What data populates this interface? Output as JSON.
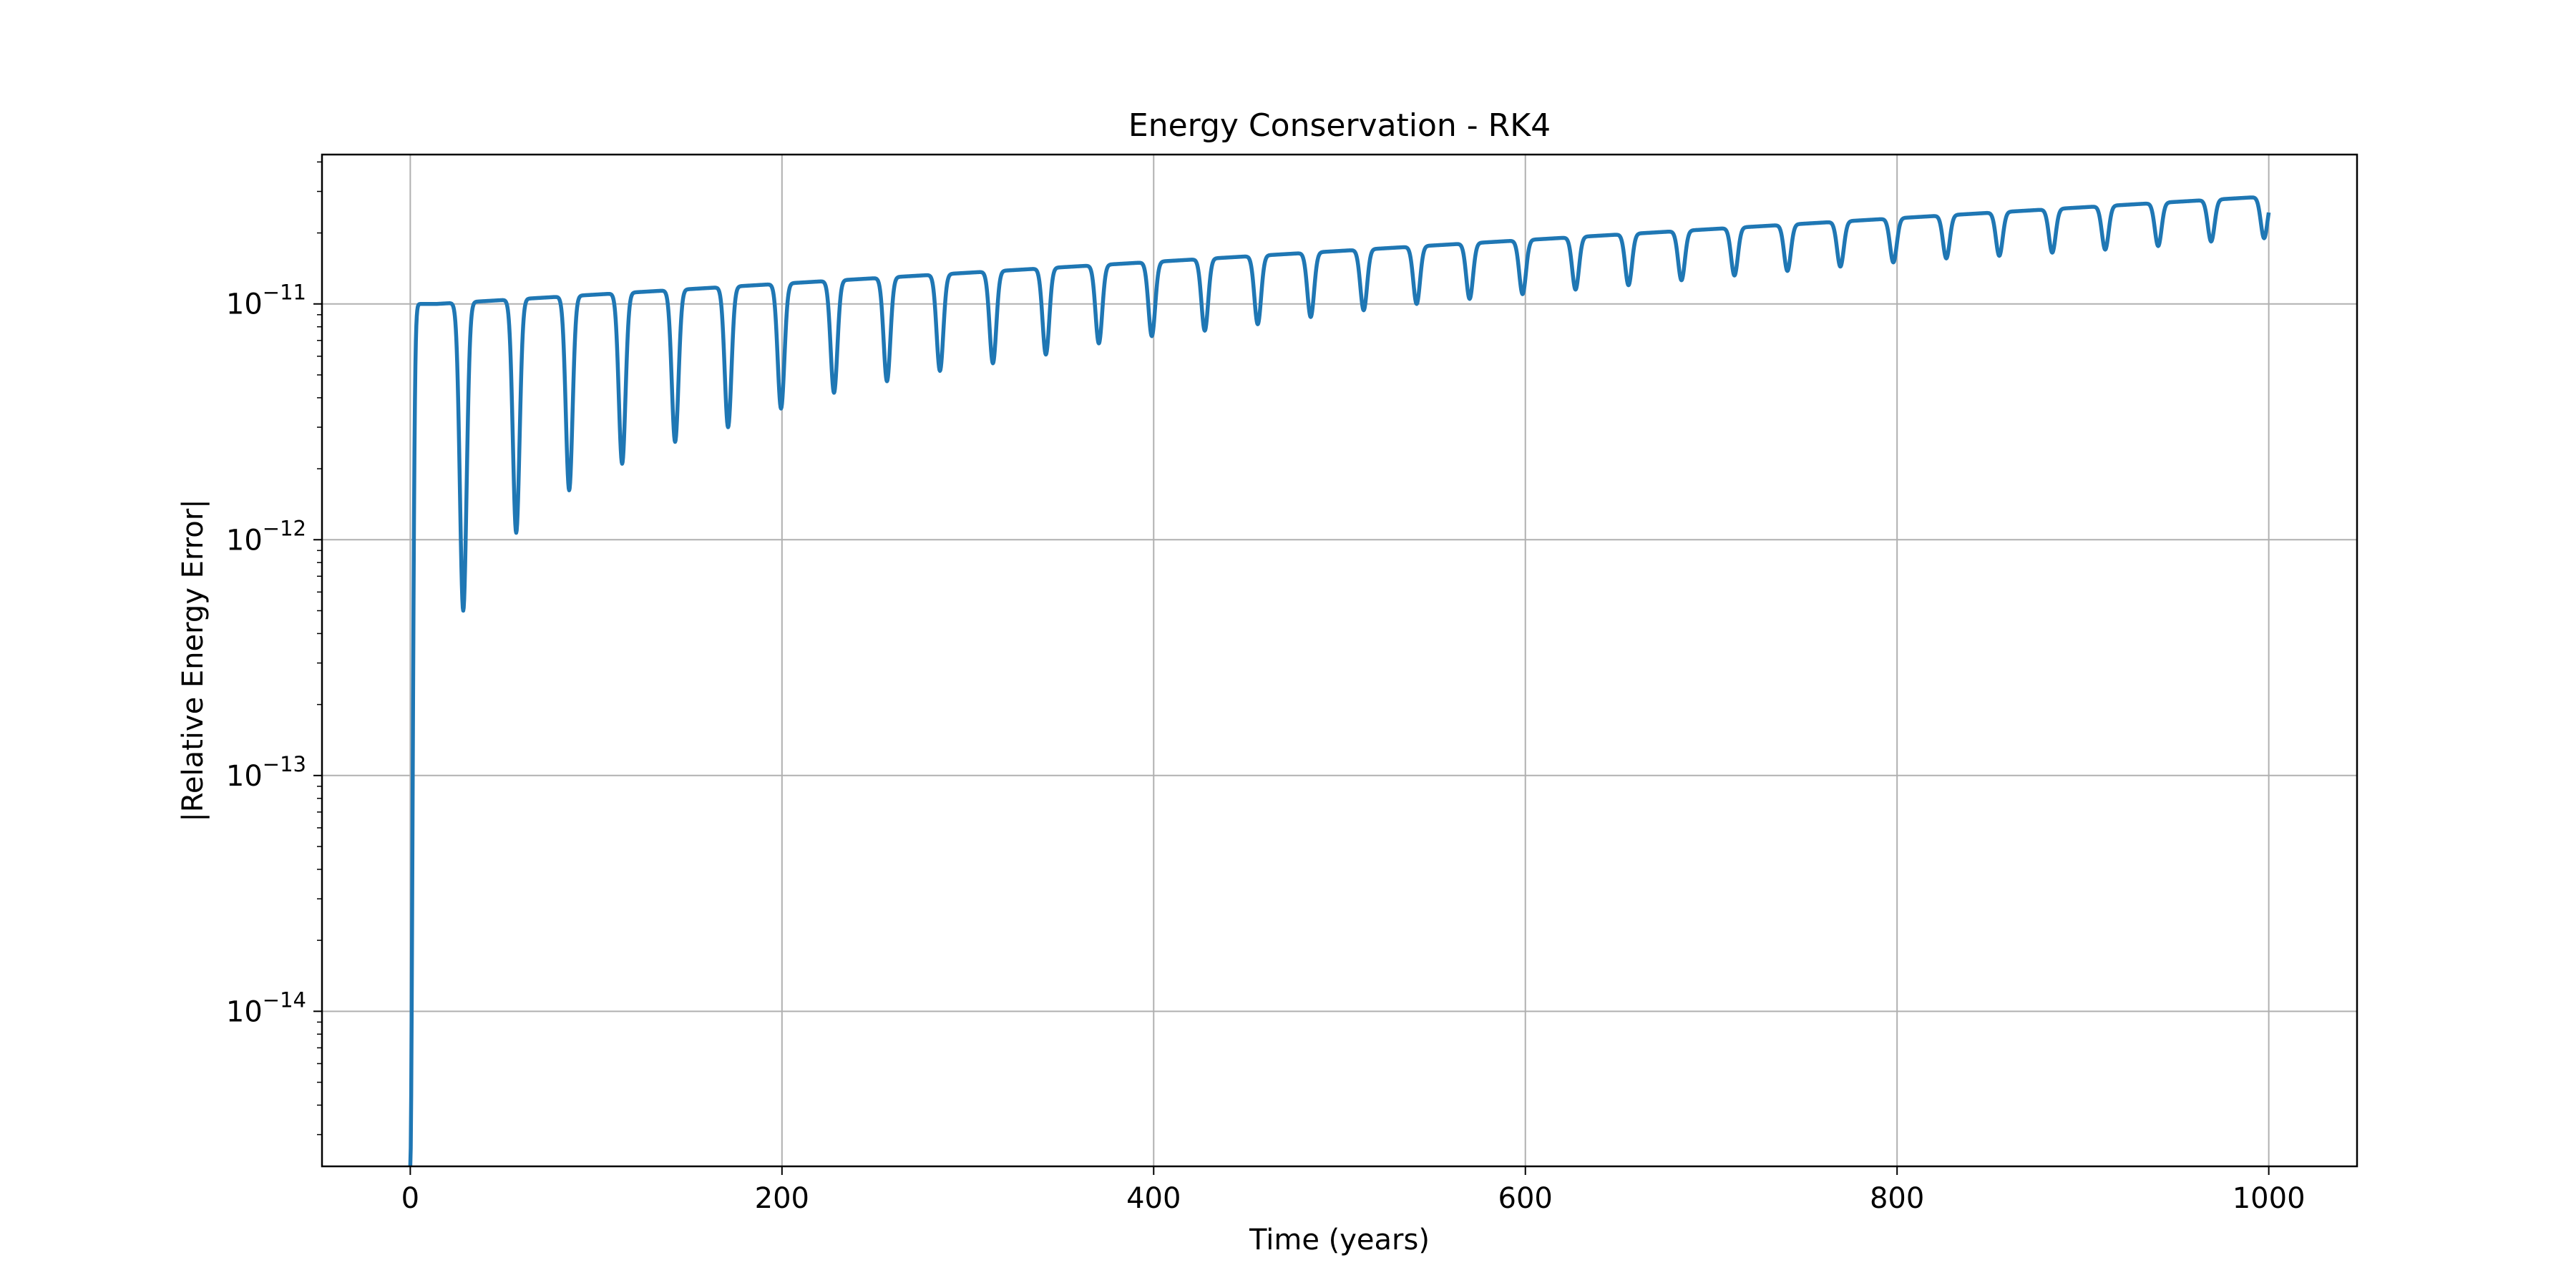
{
  "chart_data": {
    "type": "line",
    "title": "Energy Conservation - RK4",
    "xlabel": "Time (years)",
    "ylabel": "|Relative Energy Error|",
    "xscale": "linear",
    "yscale": "log",
    "xlim": [
      -47.5,
      1047.5
    ],
    "ylim": [
      2.2e-15,
      4.3e-11
    ],
    "grid": true,
    "line_color": "#1f77b4",
    "x_ticks": [
      {
        "value": 0,
        "label": "0"
      },
      {
        "value": 200,
        "label": "200"
      },
      {
        "value": 400,
        "label": "400"
      },
      {
        "value": 600,
        "label": "600"
      },
      {
        "value": 800,
        "label": "800"
      },
      {
        "value": 1000,
        "label": "1000"
      }
    ],
    "y_ticks": [
      {
        "value": 1e-14,
        "base": "10",
        "exp": "−14"
      },
      {
        "value": 1e-13,
        "base": "10",
        "exp": "−13"
      },
      {
        "value": 1e-12,
        "base": "10",
        "exp": "−12"
      },
      {
        "value": 1e-11,
        "base": "10",
        "exp": "−11"
      }
    ],
    "series": [
      {
        "period": 28.5,
        "first_dip_time": 28.5,
        "peak_start": 1e-11,
        "peak_end": 2.85e-11,
        "dip_minima": [
          5e-13,
          1.07e-12,
          1.62e-12,
          2.1e-12,
          2.6e-12,
          3e-12,
          3.6e-12,
          4.2e-12,
          4.7e-12,
          5.2e-12,
          5.6e-12,
          6.1e-12,
          6.8e-12,
          7.3e-12,
          7.7e-12,
          8.2e-12,
          8.8e-12,
          9.4e-12,
          1e-11,
          1.05e-11,
          1.1e-11,
          1.15e-11,
          1.2e-11,
          1.26e-11,
          1.32e-11,
          1.38e-11,
          1.44e-11,
          1.5e-11,
          1.56e-11,
          1.6e-11,
          1.65e-11,
          1.7e-11,
          1.76e-11,
          1.84e-11,
          1.9e-11
        ],
        "x_end": 1000
      }
    ]
  }
}
